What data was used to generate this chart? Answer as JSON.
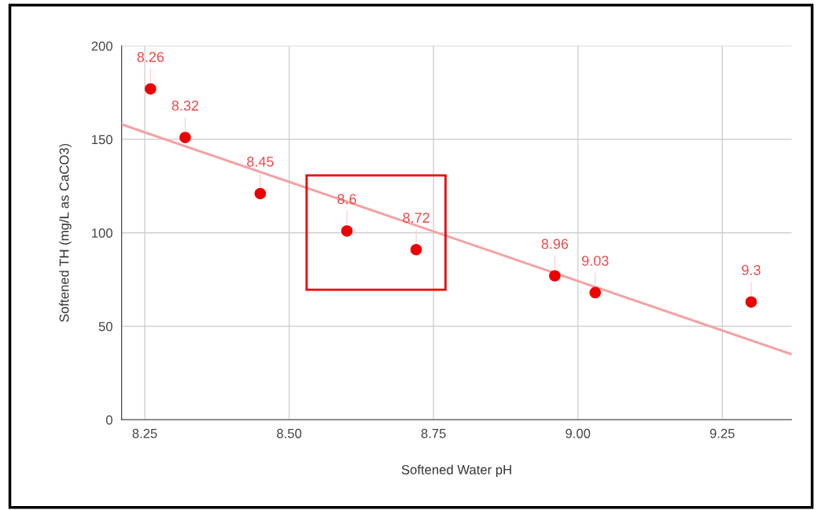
{
  "chart_data": {
    "type": "scatter",
    "xlabel": "Softened Water pH",
    "ylabel": "Softened TH (mg/L as CaCO3)",
    "x": [
      8.26,
      8.32,
      8.45,
      8.6,
      8.72,
      8.96,
      9.03,
      9.3
    ],
    "series": [
      {
        "color": "#ee0000",
        "marker": "circle",
        "values": [
          177,
          151,
          121,
          101,
          91,
          77,
          68,
          63
        ]
      },
      {
        "type": "line",
        "color": "#f4a3a3",
        "x": [
          8.21,
          9.37
        ],
        "values": [
          158,
          35
        ]
      }
    ],
    "annotations": [
      {
        "text": "8.26",
        "x": 8.26,
        "y": 177
      },
      {
        "text": "8.32",
        "x": 8.32,
        "y": 151
      },
      {
        "text": "8.45",
        "x": 8.45,
        "y": 121
      },
      {
        "text": "8.6",
        "x": 8.6,
        "y": 101
      },
      {
        "text": "8.72",
        "x": 8.72,
        "y": 91
      },
      {
        "text": "8.96",
        "x": 8.96,
        "y": 77
      },
      {
        "text": "9.03",
        "x": 9.03,
        "y": 68
      },
      {
        "text": "9.3",
        "x": 9.3,
        "y": 63
      }
    ],
    "xlim": [
      8.21,
      9.37
    ],
    "ylim": [
      0,
      200
    ],
    "xticks": [
      8.25,
      {
        "value": 8.5,
        "label": "8.50"
      },
      8.75,
      {
        "value": 9.0,
        "label": "9.00"
      },
      9.25
    ],
    "yticks": [
      0,
      50,
      100,
      150,
      200
    ],
    "grid": true,
    "legend": false
  }
}
